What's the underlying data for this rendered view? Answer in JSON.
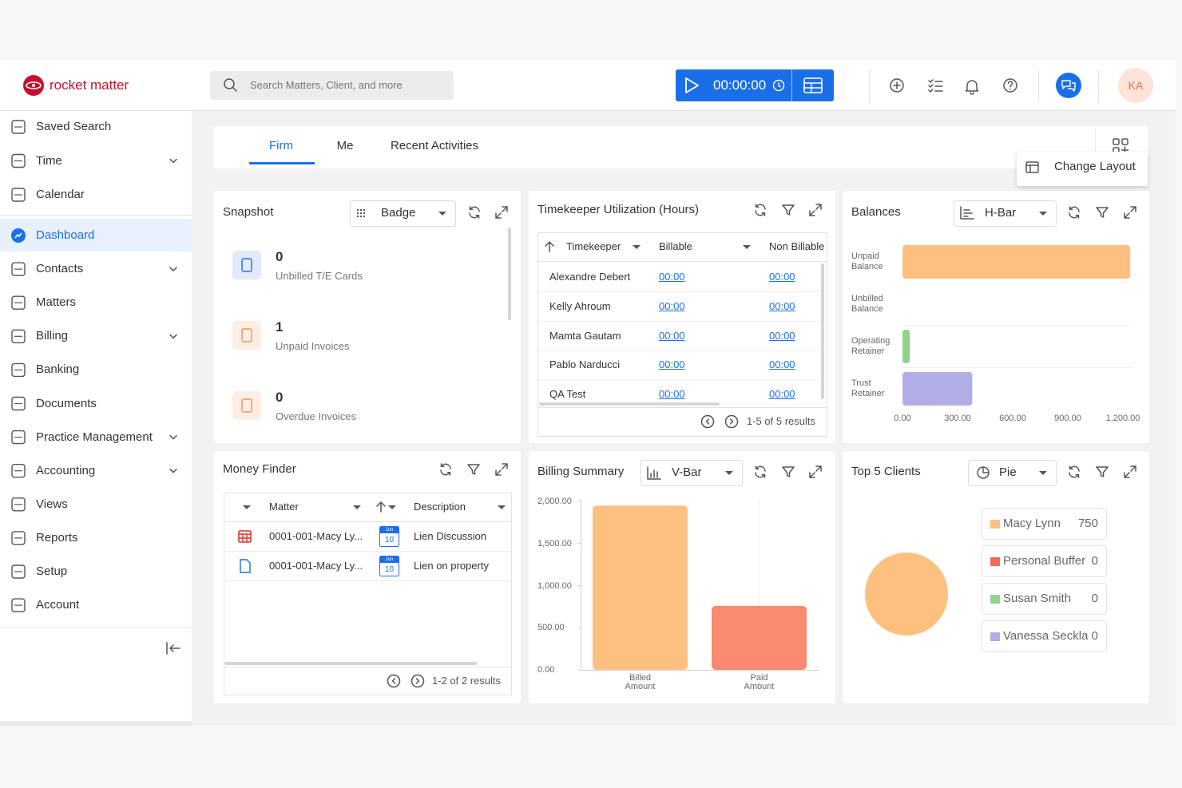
{
  "header": {
    "logo": "rocket matter",
    "search_placeholder": "Search Matters, Client, and more",
    "timer": "00:00:00",
    "avatar": "KA"
  },
  "sidebar": {
    "items": [
      {
        "label": "Saved Search"
      },
      {
        "label": "Time",
        "submenu": true
      },
      {
        "label": "Calendar"
      },
      {
        "label": "Dashboard",
        "active": true
      },
      {
        "label": "Contacts",
        "submenu": true
      },
      {
        "label": "Matters"
      },
      {
        "label": "Billing",
        "submenu": true
      },
      {
        "label": "Banking"
      },
      {
        "label": "Documents"
      },
      {
        "label": "Practice Management",
        "submenu": true
      },
      {
        "label": "Accounting",
        "submenu": true
      },
      {
        "label": "Views"
      },
      {
        "label": "Reports"
      },
      {
        "label": "Setup"
      },
      {
        "label": "Account"
      }
    ]
  },
  "tabs": [
    {
      "label": "Firm",
      "active": true
    },
    {
      "label": "Me"
    },
    {
      "label": "Recent Activities"
    }
  ],
  "change_layout": "Change Layout",
  "snapshot": {
    "title": "Snapshot",
    "view": "Badge",
    "items": [
      {
        "value": 0,
        "label": "Unbilled T/E Cards"
      },
      {
        "value": 1,
        "label": "Unpaid Invoices"
      },
      {
        "value": 0,
        "label": "Overdue Invoices"
      }
    ]
  },
  "timekeeper": {
    "title": "Timekeeper Utilization (Hours)",
    "columns": [
      "Timekeeper",
      "Billable",
      "Non Billable"
    ],
    "rows": [
      [
        "Alexandre Debert",
        "00:00",
        "00:00"
      ],
      [
        "Kelly Ahroum",
        "00:00",
        "00:00"
      ],
      [
        "Mamta Gautam",
        "00:00",
        "00:00"
      ],
      [
        "Pablo Narducci",
        "00:00",
        "00:00"
      ],
      [
        "QA Test",
        "00:00",
        "00:00"
      ]
    ],
    "pagination": "1-5 of 5 results"
  },
  "money_finder": {
    "title": "Money Finder",
    "columns": [
      "Matter",
      "Description"
    ],
    "rows": [
      {
        "kind": "calendar",
        "matter": "0001-001-Macy Ly...",
        "month": "Jun",
        "day": 10,
        "description": "Lien Discussion"
      },
      {
        "kind": "document",
        "matter": "0001-001-Macy Ly...",
        "month": "Jun",
        "day": 10,
        "description": "Lien on property"
      }
    ],
    "pagination": "1-2 of 2 results"
  },
  "chart_data": [
    {
      "type": "hbar",
      "title": "Balances",
      "view": "H-Bar",
      "categories": [
        "Unpaid Balance",
        "Unbilled Balance",
        "Operating Retainer",
        "Trust Retainer"
      ],
      "values": [
        1240,
        0,
        40,
        380
      ],
      "colors": [
        "#fdc07e",
        "#f88a6f",
        "#8fd48a",
        "#b1aee6"
      ],
      "xlim": [
        0,
        1250
      ],
      "xticks": [
        {
          "value": 0,
          "label": "0.00"
        },
        {
          "value": 300,
          "label": "300.00"
        },
        {
          "value": 600,
          "label": "600.00"
        },
        {
          "value": 900,
          "label": "900.00"
        },
        {
          "value": 1200,
          "label": "1,200.00"
        }
      ]
    },
    {
      "type": "vbar",
      "title": "Billing Summary",
      "view": "V-Bar",
      "categories": [
        "Billed Amount",
        "Paid Amount"
      ],
      "values": [
        1950,
        760
      ],
      "colors": [
        "#fdc07e",
        "#f88a6f"
      ],
      "ylim": [
        0,
        2000
      ],
      "yticks": [
        {
          "value": 0,
          "label": "0.00"
        },
        {
          "value": 500,
          "label": "500.00"
        },
        {
          "value": 1000,
          "label": "1,000.00"
        },
        {
          "value": 1500,
          "label": "1,500.00"
        },
        {
          "value": 2000,
          "label": "2,000.00"
        }
      ]
    },
    {
      "type": "pie",
      "title": "Top 5 Clients",
      "view": "Pie",
      "categories": [
        "Macy Lynn",
        "Personal Buffer",
        "Susan Smith",
        "Vanessa Seckla"
      ],
      "values": [
        750,
        0,
        0,
        0
      ],
      "colors": [
        "#fdc07e",
        "#f26a55",
        "#8fd48a",
        "#b1aee6"
      ]
    }
  ]
}
